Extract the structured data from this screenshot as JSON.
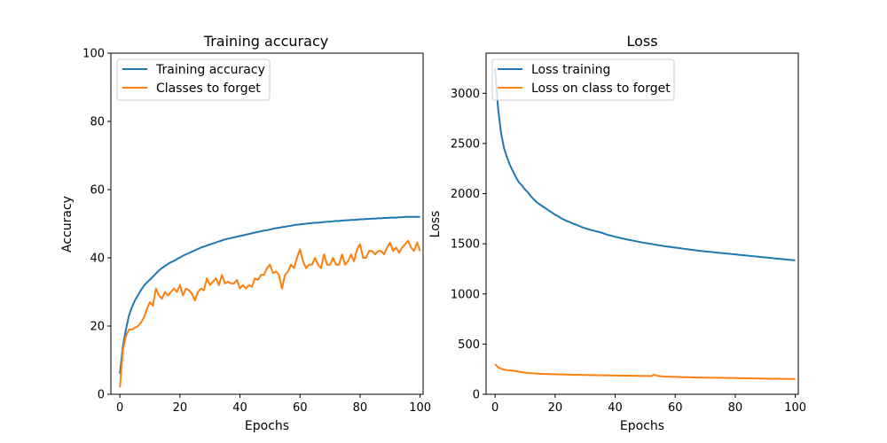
{
  "chart_data": [
    {
      "type": "line",
      "title": "Training accuracy",
      "xlabel": "Epochs",
      "ylabel": "Accuracy",
      "xlim": [
        -3,
        101
      ],
      "ylim": [
        0,
        100
      ],
      "xticks": [
        0,
        20,
        40,
        60,
        80,
        100
      ],
      "yticks": [
        0,
        20,
        40,
        60,
        80,
        100
      ],
      "grid": false,
      "legend": "top-left",
      "series": [
        {
          "name": "Training accuracy",
          "color": "#1f77b4",
          "values": [
            6,
            14,
            19,
            23,
            25.5,
            27.5,
            29,
            30.5,
            31.8,
            32.8,
            33.6,
            34.5,
            35.4,
            36.3,
            37,
            37.6,
            38.2,
            38.7,
            39.1,
            39.6,
            40.1,
            40.6,
            41,
            41.4,
            41.8,
            42.2,
            42.6,
            43,
            43.3,
            43.6,
            43.9,
            44.2,
            44.5,
            44.8,
            45.1,
            45.4,
            45.6,
            45.8,
            46,
            46.2,
            46.4,
            46.6,
            46.8,
            47,
            47.2,
            47.4,
            47.6,
            47.8,
            48,
            48.1,
            48.3,
            48.5,
            48.7,
            48.8,
            49,
            49.1,
            49.3,
            49.4,
            49.6,
            49.7,
            49.8,
            49.9,
            50,
            50.1,
            50.2,
            50.3,
            50.3,
            50.4,
            50.5,
            50.6,
            50.6,
            50.7,
            50.8,
            50.8,
            50.9,
            51,
            51,
            51.1,
            51.1,
            51.2,
            51.3,
            51.3,
            51.4,
            51.4,
            51.5,
            51.5,
            51.6,
            51.6,
            51.7,
            51.7,
            51.8,
            51.8,
            51.8,
            51.9,
            51.9,
            52,
            52,
            52,
            52,
            52,
            52
          ]
        },
        {
          "name": "Classes to forget",
          "color": "#ff7f0e",
          "values": [
            2,
            13,
            17,
            19,
            19,
            19.5,
            20,
            21,
            22.5,
            25,
            27,
            26,
            31,
            29,
            28,
            30,
            29,
            30,
            31,
            30,
            32,
            29,
            31,
            30.5,
            29.5,
            27.5,
            30,
            31,
            30.5,
            34,
            32,
            33,
            34,
            32,
            35,
            32.5,
            33,
            32.5,
            32.5,
            33.5,
            31,
            32,
            31,
            32,
            31.5,
            34,
            33.5,
            35,
            35,
            37,
            38,
            35.5,
            36,
            35,
            31,
            35,
            36,
            38,
            37,
            40,
            42.5,
            39,
            37,
            38,
            38,
            40,
            38,
            37,
            41,
            38,
            38,
            40,
            38,
            38,
            41,
            38,
            39,
            41,
            39,
            42.5,
            44,
            40,
            40,
            42,
            42,
            41,
            42,
            42,
            41,
            43,
            44.5,
            42,
            43,
            41.5,
            43,
            44,
            45,
            43,
            42,
            44.5,
            42
          ]
        }
      ]
    },
    {
      "type": "line",
      "title": "Loss",
      "xlabel": "Epochs",
      "ylabel": "Loss",
      "xlim": [
        -3,
        101
      ],
      "ylim": [
        0,
        3400
      ],
      "xticks": [
        0,
        20,
        40,
        60,
        80,
        100
      ],
      "yticks": [
        0,
        500,
        1000,
        1500,
        2000,
        2500,
        3000
      ],
      "grid": false,
      "legend": "top-left",
      "series": [
        {
          "name": "Loss training",
          "color": "#1f77b4",
          "values": [
            3250,
            2850,
            2600,
            2450,
            2360,
            2280,
            2220,
            2160,
            2110,
            2080,
            2040,
            2010,
            1970,
            1940,
            1910,
            1890,
            1870,
            1850,
            1830,
            1810,
            1790,
            1775,
            1755,
            1740,
            1725,
            1715,
            1700,
            1690,
            1678,
            1665,
            1655,
            1645,
            1637,
            1630,
            1622,
            1615,
            1605,
            1595,
            1585,
            1578,
            1570,
            1563,
            1556,
            1549,
            1543,
            1537,
            1531,
            1525,
            1519,
            1513,
            1508,
            1503,
            1498,
            1493,
            1488,
            1483,
            1478,
            1474,
            1470,
            1466,
            1462,
            1458,
            1454,
            1450,
            1446,
            1442,
            1438,
            1434,
            1430,
            1427,
            1424,
            1421,
            1418,
            1415,
            1412,
            1409,
            1406,
            1403,
            1400,
            1397,
            1394,
            1391,
            1388,
            1385,
            1382,
            1379,
            1376,
            1373,
            1370,
            1367,
            1364,
            1361,
            1358,
            1355,
            1352,
            1349,
            1346,
            1343,
            1340,
            1338,
            1336
          ]
        },
        {
          "name": "Loss on class to forget",
          "color": "#ff7f0e",
          "values": [
            300,
            270,
            255,
            245,
            240,
            238,
            235,
            230,
            225,
            220,
            215,
            212,
            210,
            208,
            206,
            204,
            203,
            202,
            201,
            200,
            200,
            199,
            198,
            197,
            196,
            195,
            194,
            194,
            193,
            193,
            192,
            192,
            191,
            191,
            190,
            190,
            189,
            189,
            188,
            188,
            187,
            187,
            186,
            186,
            185,
            185,
            184,
            184,
            183,
            183,
            182,
            182,
            181,
            195,
            185,
            180,
            178,
            176,
            175,
            174,
            173,
            172,
            171,
            170,
            170,
            169,
            168,
            168,
            167,
            167,
            166,
            166,
            165,
            165,
            164,
            164,
            163,
            163,
            162,
            162,
            161,
            161,
            160,
            160,
            159,
            159,
            158,
            158,
            157,
            157,
            156,
            156,
            155,
            155,
            154,
            154,
            153,
            153,
            152,
            152,
            152
          ]
        }
      ]
    }
  ]
}
